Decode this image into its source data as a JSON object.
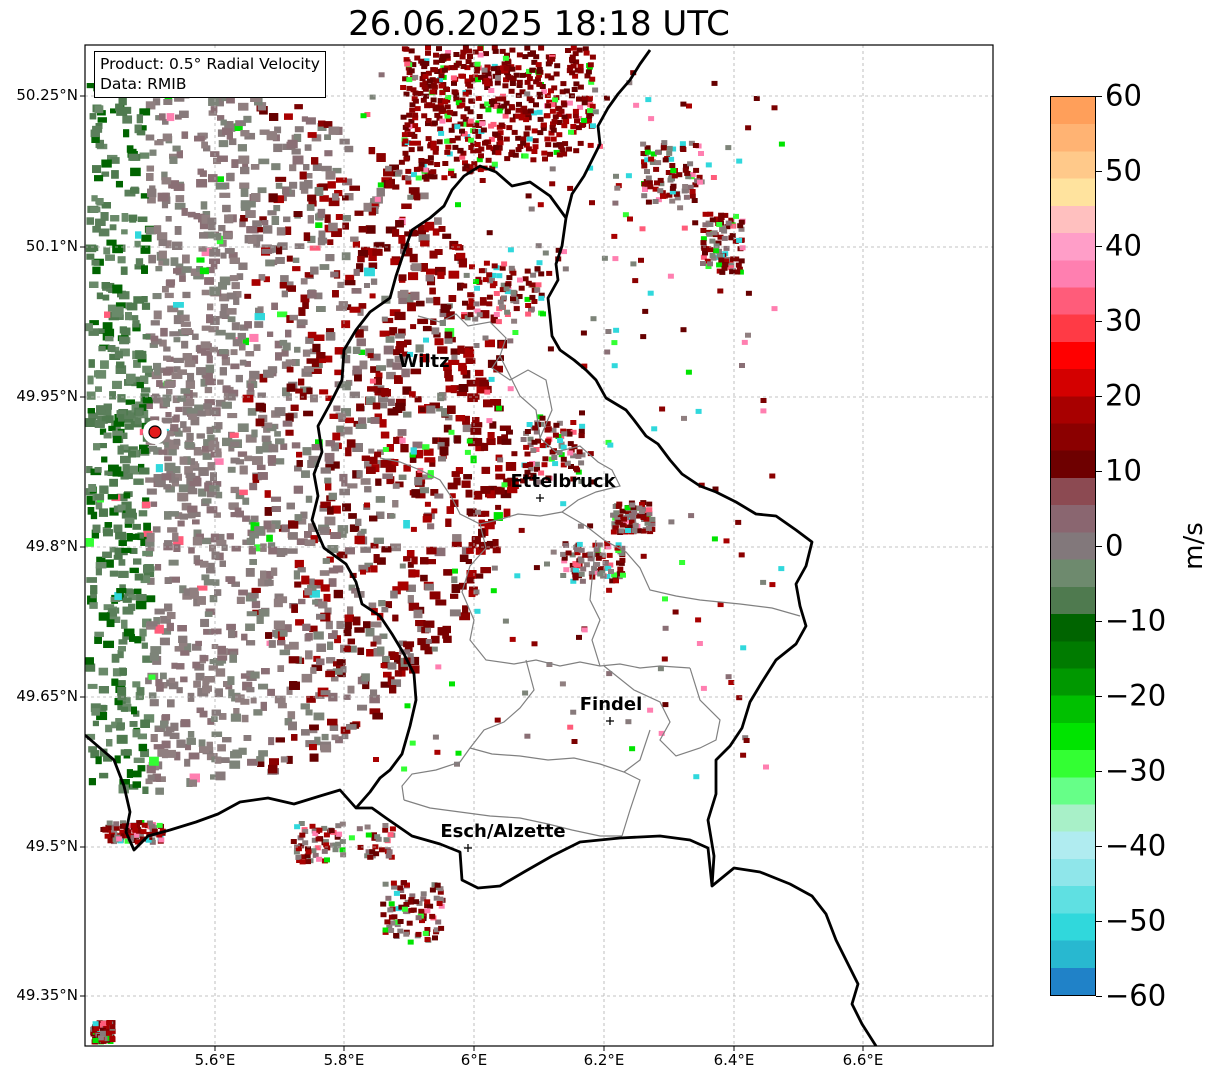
{
  "title": "26.06.2025 18:18 UTC",
  "info_box": {
    "product": "Product: 0.5° Radial Velocity",
    "data_source": "Data: RMIB"
  },
  "axes": {
    "lat_ticks": [
      "50.25°N",
      "50.1°N",
      "49.95°N",
      "49.8°N",
      "49.65°N",
      "49.5°N",
      "49.35°N"
    ],
    "lon_ticks": [
      "5.6°E",
      "5.8°E",
      "6°E",
      "6.2°E",
      "6.4°E",
      "6.6°E"
    ]
  },
  "cities": [
    {
      "name": "Wiltz"
    },
    {
      "name": "Ettelbruck"
    },
    {
      "name": "Findel"
    },
    {
      "name": "Esch/Alzette"
    }
  ],
  "radar_site": {
    "color": "#e41a1c"
  },
  "colorbar": {
    "unit": "m/s",
    "ticks": [
      "60",
      "50",
      "40",
      "30",
      "20",
      "10",
      "0",
      "−10",
      "−20",
      "−30",
      "−40",
      "−50",
      "−60"
    ],
    "range": [
      -60,
      60
    ],
    "colors_top_to_bottom": [
      "#ff9f5a",
      "#ffb373",
      "#ffc98a",
      "#ffe39e",
      "#ffc0bf",
      "#ff9ec8",
      "#ff7fb0",
      "#ff5c7a",
      "#ff3a45",
      "#ff0000",
      "#d40000",
      "#a80000",
      "#8b0000",
      "#6e0000",
      "#8c4a52",
      "#8a6670",
      "#82787b",
      "#6e8a6e",
      "#4f7a4f",
      "#006400",
      "#007b00",
      "#009800",
      "#00c000",
      "#00e400",
      "#33ff33",
      "#66ff88",
      "#a8f0c8",
      "#b0ecf0",
      "#8fe6ea",
      "#5fe0e2",
      "#30d8dc",
      "#28b8d0",
      "#2082c8"
    ]
  },
  "colors": {
    "outflow_gray": "#877a7b",
    "inflow_green": "#5b7f5b",
    "strong_red": "#7a0000",
    "border": "#000000",
    "admin_border": "#808080"
  }
}
